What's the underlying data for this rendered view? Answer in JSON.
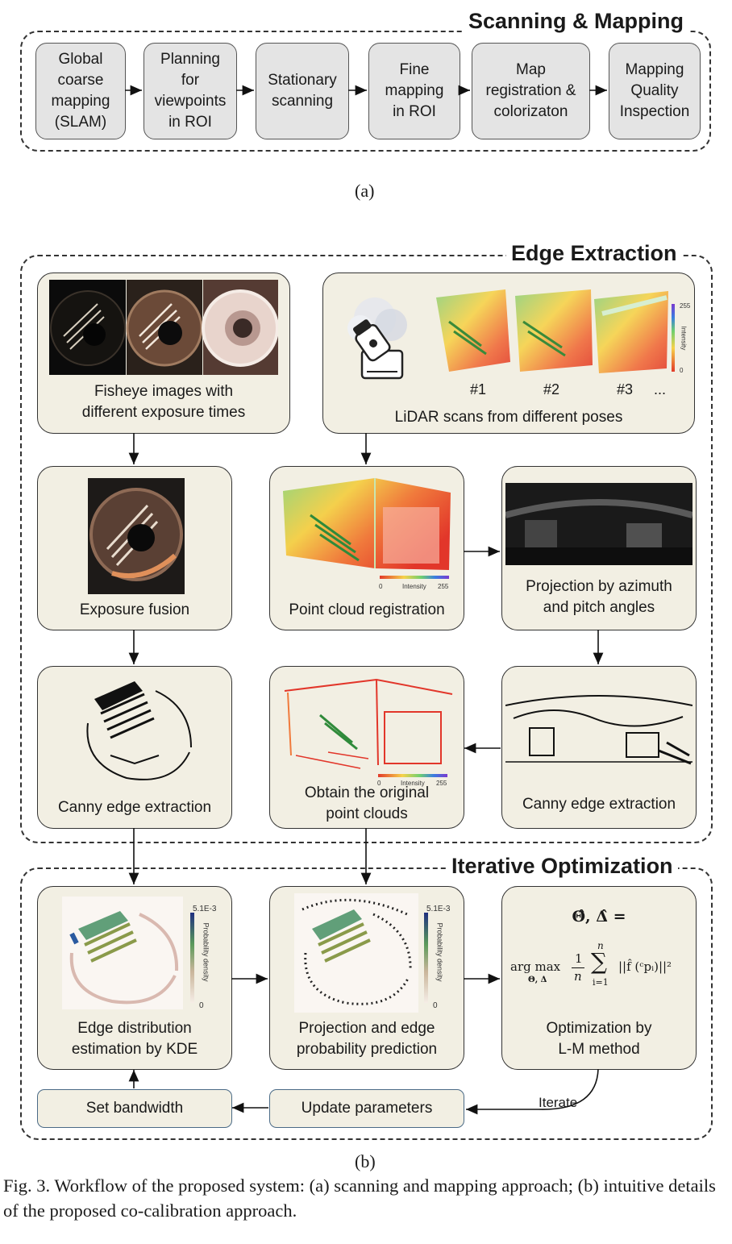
{
  "panel_a": {
    "title": "Scanning & Mapping",
    "steps": [
      {
        "label": "Global\ncoarse\nmapping\n(SLAM)"
      },
      {
        "label": "Planning\nfor\nviewpoints\nin ROI"
      },
      {
        "label": "Stationary\nscanning"
      },
      {
        "label": "Fine\nmapping\nin ROI"
      },
      {
        "label": "Map\nregistration &\ncolorizaton"
      },
      {
        "label": "Mapping\nQuality\nInspection"
      }
    ],
    "sublabel": "(a)"
  },
  "panel_b": {
    "edge_title": "Edge Extraction",
    "opt_title": "Iterative Optimization",
    "fisheye_caption": "Fisheye images with\ndifferent exposure times",
    "lidar_caption": "LiDAR scans from different poses",
    "scan_labels": [
      "#1",
      "#2",
      "#3",
      "..."
    ],
    "intensity_label": "Intensity",
    "intensity_max": "255",
    "intensity_min": "0",
    "exposure_caption": "Exposure fusion",
    "pc_reg_caption": "Point cloud registration",
    "projection_caption": "Projection by azimuth\nand pitch angles",
    "canny_left_caption": "Canny edge extraction",
    "original_pc_caption": "Obtain the original\npoint clouds",
    "canny_right_caption": "Canny edge extraction",
    "kde_caption": "Edge distribution\nestimation by KDE",
    "proj_pred_caption": "Projection and edge\nprobability prediction",
    "density_label": "Probability density",
    "density_max": "5.1E-3",
    "density_min": "0",
    "equation_line1": "Θ̂, Δ̂ =",
    "equation_argmax": "arg max",
    "equation_sub": "Θ, Δ",
    "equation_frac_num": "1",
    "equation_frac_den": "n",
    "equation_sum_top": "n",
    "equation_sum_bot": "i=1",
    "equation_body": "||f̂ (ᶜpᵢ)||²",
    "optimization_caption": "Optimization by\nL-M method",
    "set_bandwidth": "Set bandwidth",
    "update_parameters": "Update parameters",
    "iterate": "Iterate",
    "sublabel": "(b)"
  },
  "figure_caption": "Fig. 3.  Workflow of the proposed system: (a) scanning and mapping approach; (b) intuitive details of the proposed co-calibration approach."
}
